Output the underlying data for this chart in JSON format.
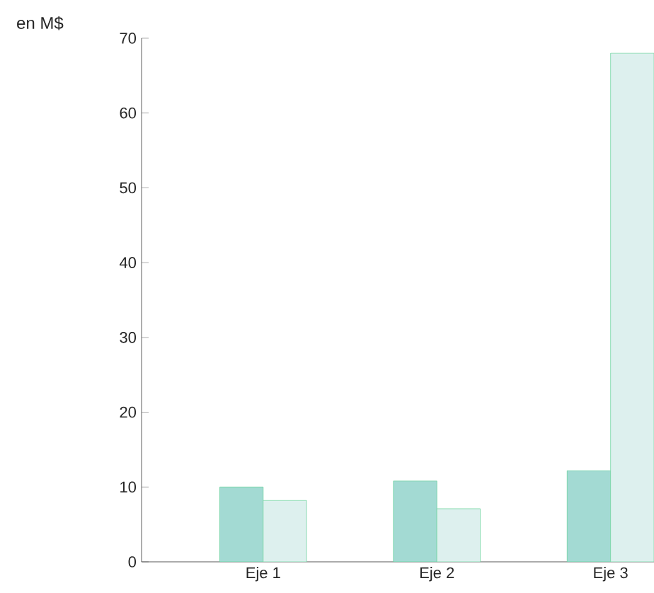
{
  "chart_data": {
    "type": "bar",
    "ylabel": "en M$",
    "categories": [
      "Eje 1",
      "Eje 2",
      "Eje 3"
    ],
    "series": [
      {
        "color": "#a3dad3",
        "values": [
          10,
          10.8,
          12.2
        ]
      },
      {
        "color": "#ddf0ee",
        "values": [
          8.2,
          7.1,
          68
        ]
      }
    ],
    "ylim": [
      0,
      70
    ],
    "yticks": [
      0,
      10,
      20,
      30,
      40,
      50,
      60,
      70
    ]
  }
}
